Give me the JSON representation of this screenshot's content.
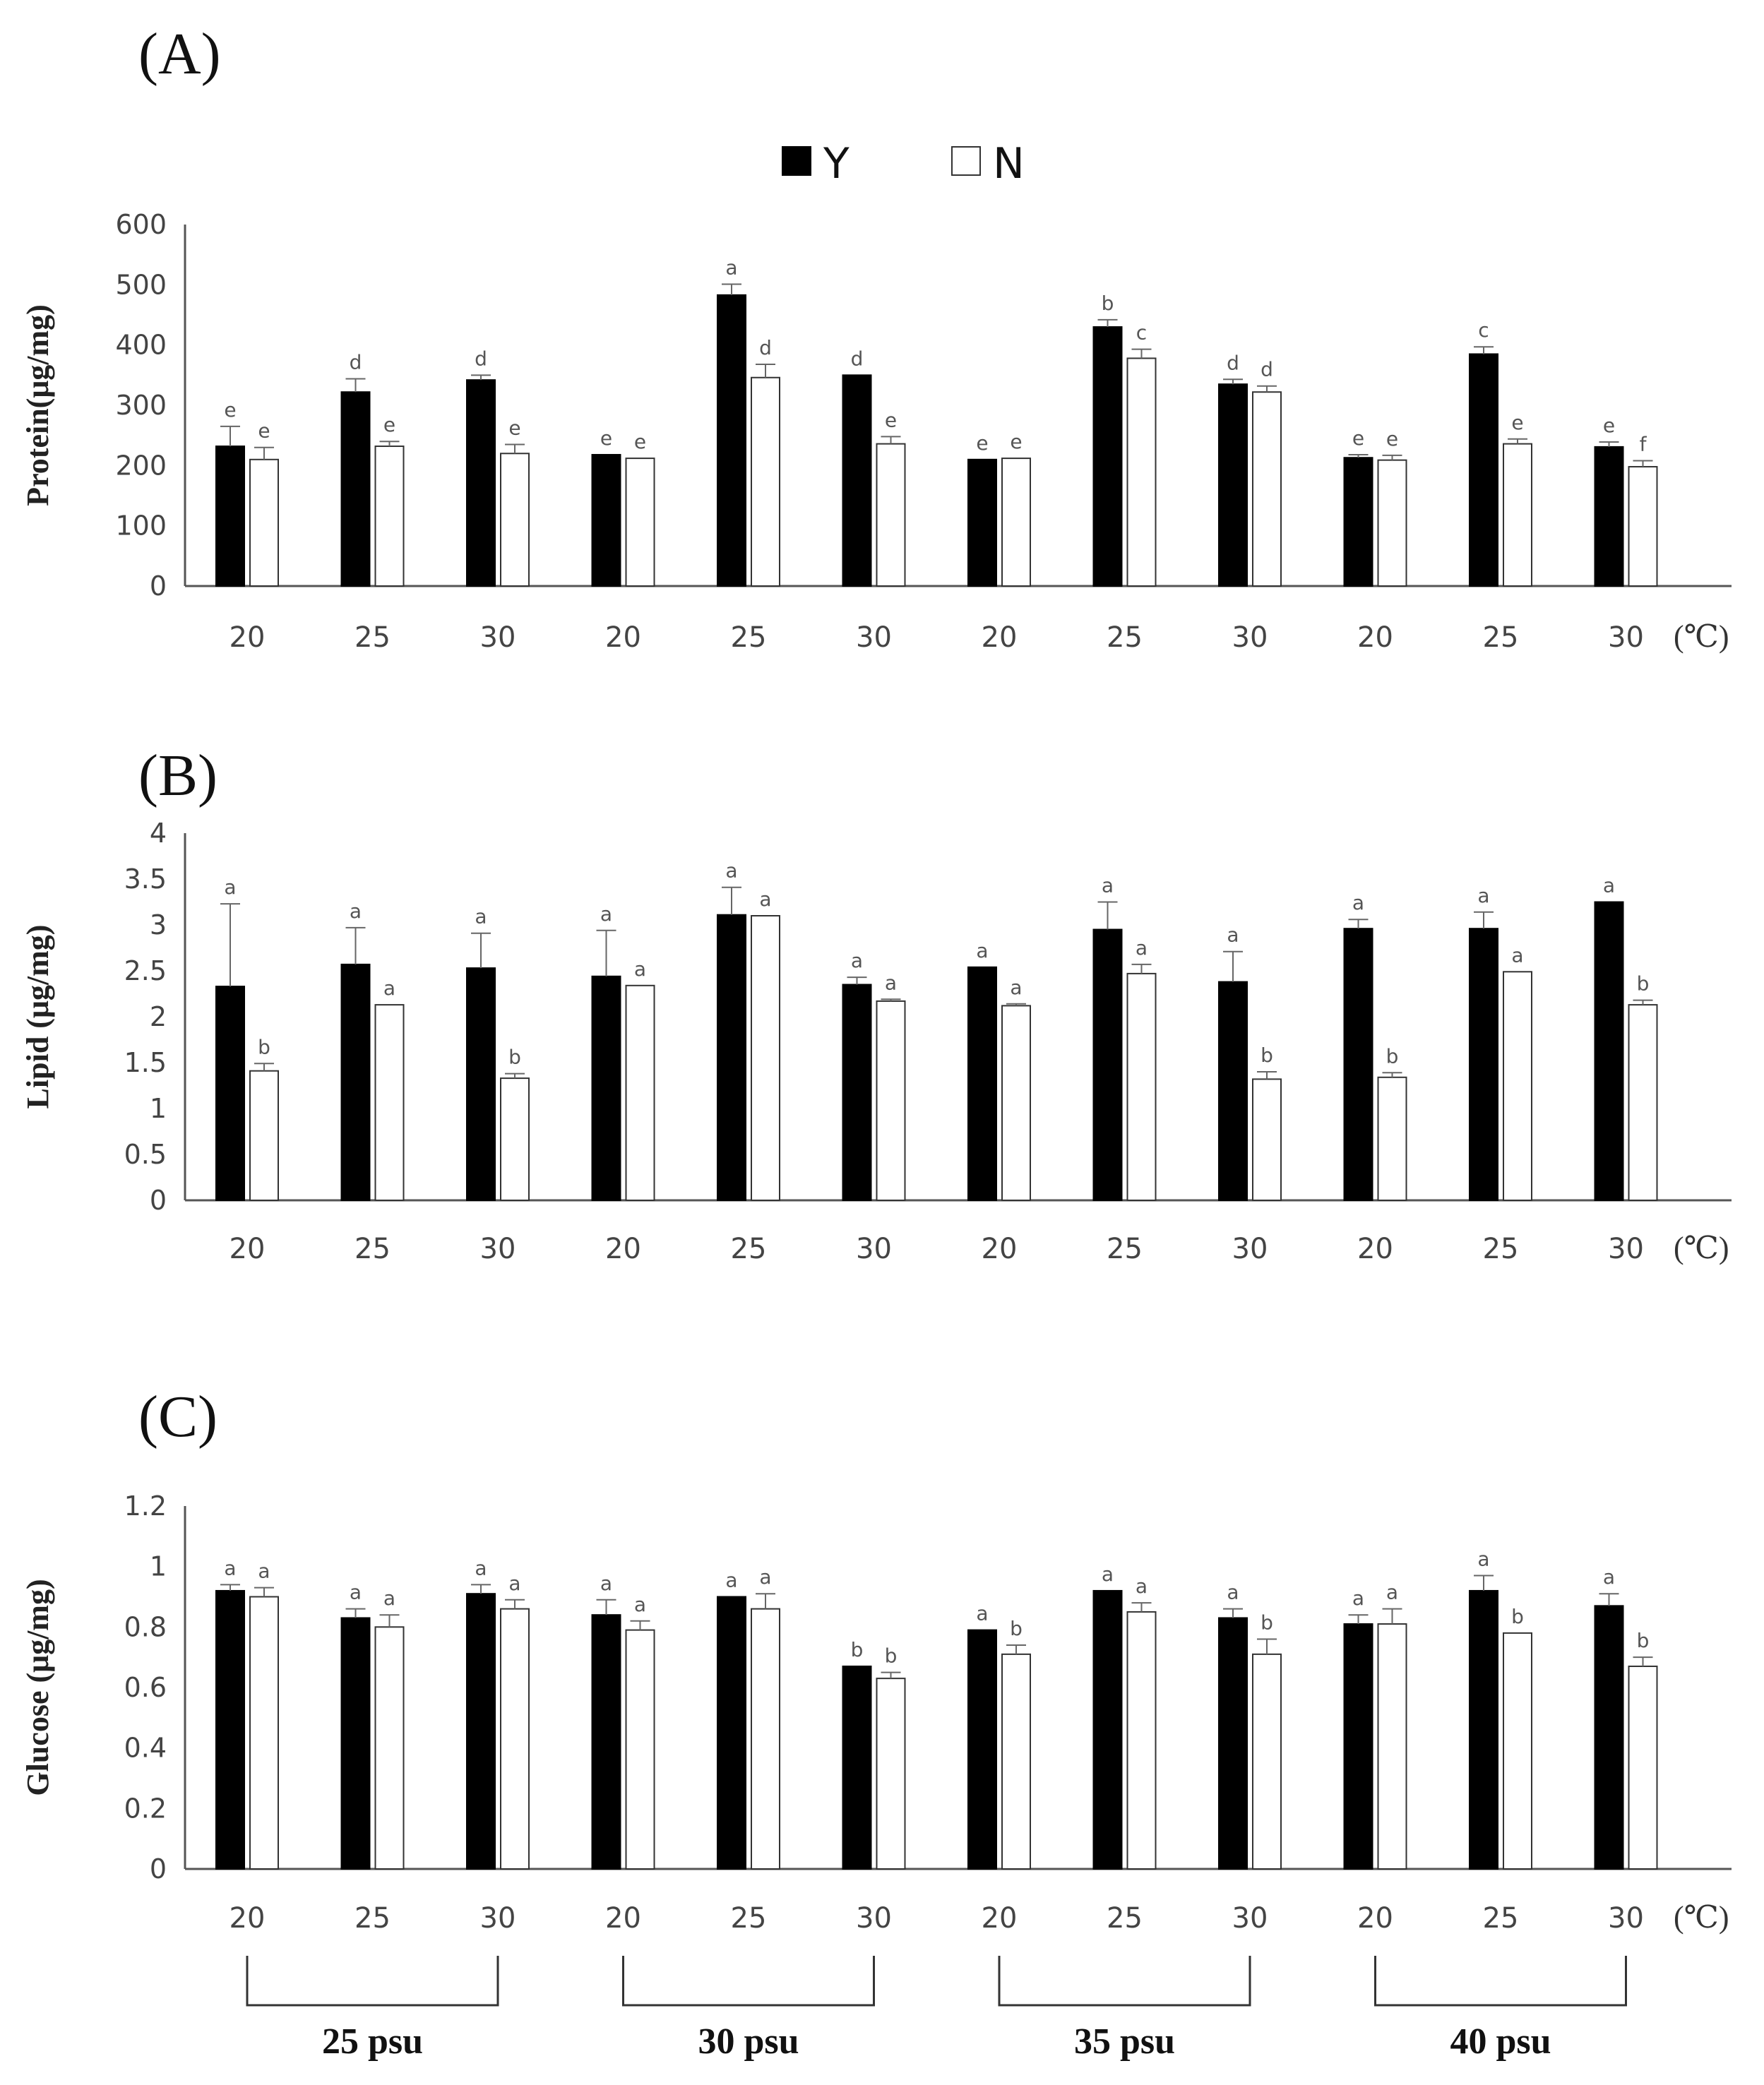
{
  "legend": [
    {
      "label": "Y",
      "color": "#000000"
    },
    {
      "label": "N",
      "color": "#ffffff"
    }
  ],
  "x_unit": "(℃)",
  "groups": [
    "25 psu",
    "30 psu",
    "35 psu",
    "40 psu"
  ],
  "chart_data": [
    {
      "type": "bar",
      "panel": "(A)",
      "ylabel": "Protein(μg/mg)",
      "ylim": [
        0,
        600
      ],
      "yticks": [
        "0",
        "100",
        "200",
        "300",
        "400",
        "500",
        "600"
      ],
      "categories": [
        "20",
        "25",
        "30",
        "20",
        "25",
        "30",
        "20",
        "25",
        "30",
        "20",
        "25",
        "30"
      ],
      "series": [
        {
          "name": "Y",
          "values": [
            232,
            322,
            342,
            218,
            483,
            350,
            210,
            430,
            335,
            213,
            385,
            231
          ],
          "errors": [
            33,
            22,
            8,
            0,
            18,
            0,
            0,
            12,
            8,
            5,
            12,
            8
          ],
          "labels": [
            "e",
            "d",
            "d",
            "e",
            "a",
            "d",
            "e",
            "b",
            "d",
            "e",
            "c",
            "e"
          ]
        },
        {
          "name": "N",
          "values": [
            210,
            232,
            220,
            212,
            346,
            236,
            212,
            378,
            322,
            209,
            236,
            198
          ],
          "errors": [
            20,
            8,
            15,
            0,
            22,
            12,
            0,
            15,
            10,
            8,
            8,
            10
          ],
          "labels": [
            "e",
            "e",
            "e",
            "e",
            "d",
            "e",
            "e",
            "c",
            "d",
            "e",
            "e",
            "f"
          ]
        }
      ]
    },
    {
      "type": "bar",
      "panel": "(B)",
      "ylabel": "Lipid (μg/mg)",
      "ylim": [
        0,
        4
      ],
      "yticks": [
        "0",
        "0.5",
        "1",
        "1.5",
        "2",
        "2.5",
        "3",
        "3.5",
        "4"
      ],
      "categories": [
        "20",
        "25",
        "30",
        "20",
        "25",
        "30",
        "20",
        "25",
        "30",
        "20",
        "25",
        "30"
      ],
      "series": [
        {
          "name": "Y",
          "values": [
            2.33,
            2.57,
            2.53,
            2.44,
            3.11,
            2.35,
            2.54,
            2.95,
            2.38,
            2.96,
            2.96,
            3.25
          ],
          "errors": [
            0.9,
            0.4,
            0.38,
            0.5,
            0.3,
            0.08,
            0.0,
            0.3,
            0.33,
            0.1,
            0.18,
            0.0
          ],
          "labels": [
            "a",
            "a",
            "a",
            "a",
            "a",
            "a",
            "a",
            "a",
            "a",
            "a",
            "a",
            "a"
          ]
        },
        {
          "name": "N",
          "values": [
            1.41,
            2.13,
            1.33,
            2.34,
            3.1,
            2.17,
            2.12,
            2.47,
            1.32,
            1.34,
            2.49,
            2.13
          ],
          "errors": [
            0.08,
            0.0,
            0.05,
            0.0,
            0.0,
            0.02,
            0.02,
            0.1,
            0.08,
            0.05,
            0.0,
            0.05
          ],
          "labels": [
            "b",
            "a",
            "b",
            "a",
            "a",
            "a",
            "a",
            "a",
            "b",
            "b",
            "a",
            "b"
          ]
        }
      ]
    },
    {
      "type": "bar",
      "panel": "(C)",
      "ylabel": "Glucose (μg/mg)",
      "ylim": [
        0,
        1.2
      ],
      "yticks": [
        "0",
        "0.2",
        "0.4",
        "0.6",
        "0.8",
        "1",
        "1.2"
      ],
      "categories": [
        "20",
        "25",
        "30",
        "20",
        "25",
        "30",
        "20",
        "25",
        "30",
        "20",
        "25",
        "30"
      ],
      "series": [
        {
          "name": "Y",
          "values": [
            0.92,
            0.83,
            0.91,
            0.84,
            0.9,
            0.67,
            0.79,
            0.92,
            0.83,
            0.81,
            0.92,
            0.87
          ],
          "errors": [
            0.02,
            0.03,
            0.03,
            0.05,
            0.0,
            0.0,
            0.0,
            0.0,
            0.03,
            0.03,
            0.05,
            0.04
          ],
          "labels": [
            "a",
            "a",
            "a",
            "a",
            "a",
            "b",
            "a",
            "a",
            "a",
            "a",
            "a",
            "a"
          ]
        },
        {
          "name": "N",
          "values": [
            0.9,
            0.8,
            0.86,
            0.79,
            0.86,
            0.63,
            0.71,
            0.85,
            0.71,
            0.81,
            0.78,
            0.67
          ],
          "errors": [
            0.03,
            0.04,
            0.03,
            0.03,
            0.05,
            0.02,
            0.03,
            0.03,
            0.05,
            0.05,
            0.0,
            0.03
          ],
          "labels": [
            "a",
            "a",
            "a",
            "a",
            "a",
            "b",
            "b",
            "a",
            "b",
            "a",
            "b",
            "b"
          ]
        }
      ]
    }
  ]
}
